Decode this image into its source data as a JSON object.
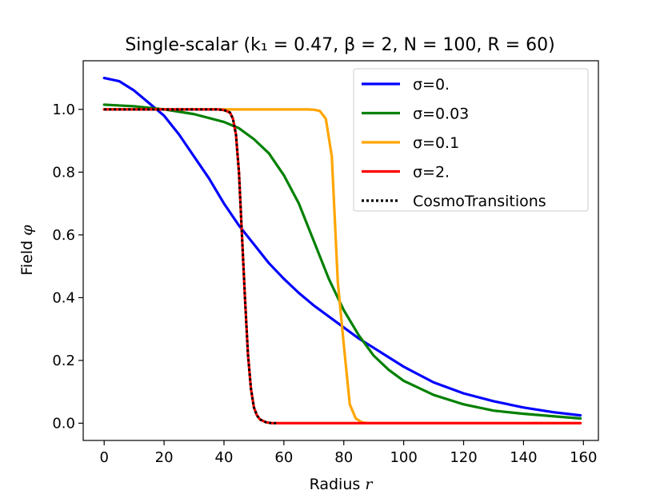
{
  "chart_data": {
    "type": "line",
    "title": "Single-scalar (k₁ = 0.47,  β = 2,  N = 100,  R = 60)",
    "xlabel_text": "Radius",
    "xlabel_symbol": "r",
    "ylabel_text": "Field",
    "ylabel_symbol": "φ",
    "xlim": [
      -7,
      165
    ],
    "ylim": [
      -0.055,
      1.155
    ],
    "xticks": [
      0,
      20,
      40,
      60,
      80,
      100,
      120,
      140,
      160
    ],
    "xtick_labels": [
      "0",
      "20",
      "40",
      "60",
      "80",
      "100",
      "120",
      "140",
      "160"
    ],
    "yticks": [
      0.0,
      0.2,
      0.4,
      0.6,
      0.8,
      1.0
    ],
    "ytick_labels": [
      "0.0",
      "0.2",
      "0.4",
      "0.6",
      "0.8",
      "1.0"
    ],
    "legend_position": "top-right",
    "series": [
      {
        "name": "σ=0.",
        "color": "#0000ff",
        "style": "solid",
        "x": [
          0,
          5,
          10,
          15,
          20,
          25,
          30,
          35,
          40,
          45,
          50,
          55,
          60,
          65,
          70,
          75,
          80,
          85,
          90,
          95,
          100,
          110,
          120,
          130,
          140,
          150,
          159
        ],
        "y": [
          1.1,
          1.09,
          1.06,
          1.02,
          0.98,
          0.92,
          0.85,
          0.78,
          0.7,
          0.63,
          0.57,
          0.51,
          0.46,
          0.415,
          0.375,
          0.34,
          0.305,
          0.27,
          0.24,
          0.21,
          0.18,
          0.13,
          0.095,
          0.07,
          0.05,
          0.035,
          0.025
        ]
      },
      {
        "name": "σ=0.03",
        "color": "#008000",
        "style": "solid",
        "x": [
          0,
          10,
          20,
          30,
          40,
          45,
          50,
          55,
          60,
          65,
          70,
          75,
          80,
          85,
          90,
          95,
          100,
          110,
          120,
          130,
          140,
          150,
          159
        ],
        "y": [
          1.015,
          1.01,
          1.0,
          0.985,
          0.96,
          0.94,
          0.905,
          0.86,
          0.79,
          0.7,
          0.58,
          0.46,
          0.36,
          0.28,
          0.215,
          0.17,
          0.135,
          0.09,
          0.06,
          0.04,
          0.03,
          0.022,
          0.015
        ]
      },
      {
        "name": "σ=0.1",
        "color": "#ffa500",
        "style": "solid",
        "x": [
          0,
          20,
          40,
          60,
          68,
          70,
          72,
          74,
          76,
          78,
          80,
          82,
          84,
          86,
          88,
          100,
          120,
          140,
          159
        ],
        "y": [
          1.0,
          1.0,
          1.0,
          1.0,
          1.0,
          0.999,
          0.995,
          0.97,
          0.85,
          0.45,
          0.25,
          0.06,
          0.015,
          0.003,
          0.0,
          0.0,
          0.0,
          0.0,
          0.0
        ]
      },
      {
        "name": "σ=2.",
        "color": "#ff0000",
        "style": "solid",
        "x": [
          0,
          20,
          38,
          40,
          42,
          43,
          44,
          45,
          46,
          47,
          48,
          49,
          50,
          51,
          52,
          54,
          56,
          60,
          80,
          100,
          120,
          140,
          159
        ],
        "y": [
          1.0,
          1.0,
          1.0,
          0.998,
          0.99,
          0.97,
          0.92,
          0.8,
          0.6,
          0.4,
          0.22,
          0.11,
          0.05,
          0.025,
          0.012,
          0.003,
          0.0,
          0.0,
          0.0,
          0.0,
          0.0,
          0.0,
          0.0
        ]
      },
      {
        "name": "CosmoTransitions",
        "color": "#000000",
        "style": "dotted",
        "x": [
          0,
          20,
          38,
          40,
          42,
          43,
          44,
          45,
          46,
          47,
          48,
          49,
          50,
          51,
          52,
          54,
          56,
          58
        ],
        "y": [
          1.0,
          1.0,
          1.0,
          0.998,
          0.99,
          0.97,
          0.92,
          0.8,
          0.6,
          0.4,
          0.22,
          0.11,
          0.05,
          0.025,
          0.012,
          0.003,
          0.0,
          0.0
        ]
      }
    ]
  }
}
